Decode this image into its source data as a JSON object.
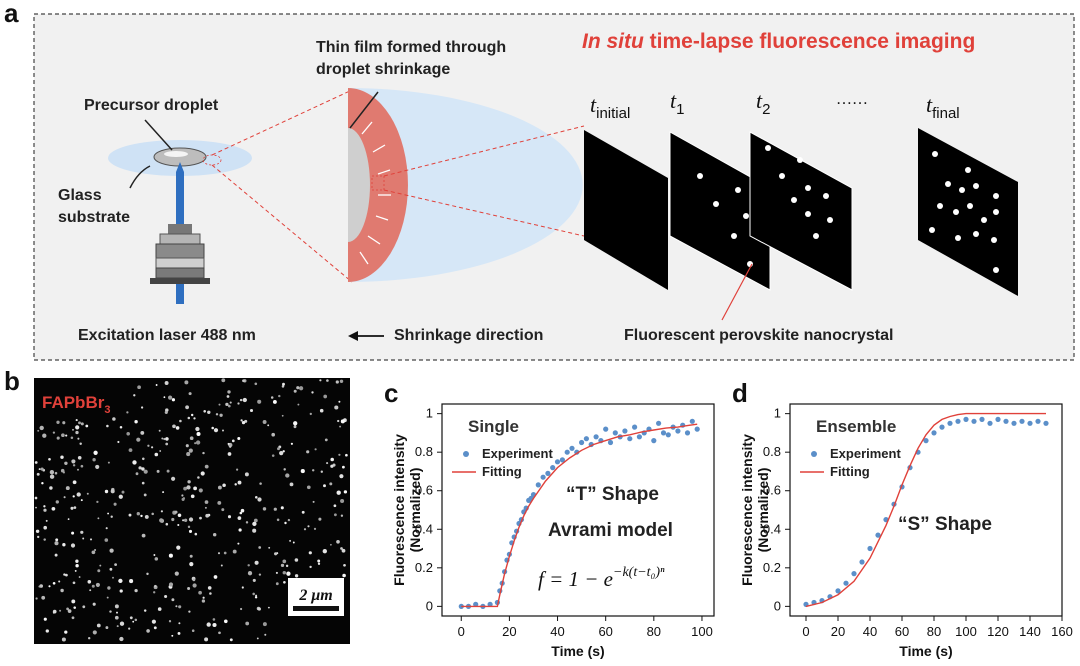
{
  "panel_a": {
    "letter": "a",
    "title_italic": "In situ",
    "title_rest": " time-lapse fluorescence imaging",
    "precursor_label": "Precursor droplet",
    "substrate_line1": "Glass",
    "substrate_line2": "substrate",
    "film_line1": "Thin film formed through",
    "film_line2": "droplet shrinkage",
    "laser_label": "Excitation laser 488 nm",
    "shrink_label": "Shrinkage direction",
    "nanocrystal_label": "Fluorescent perovskite nanocrystal",
    "frames": [
      {
        "base": "t",
        "sub": "initial"
      },
      {
        "base": "t",
        "sub": "1"
      },
      {
        "base": "t",
        "sub": "2"
      },
      {
        "base": "……",
        "sub": ""
      },
      {
        "base": "t",
        "sub": "final"
      }
    ],
    "colors": {
      "accent": "#e0413a",
      "film": "#e07a70",
      "halo": "#d6e7f7",
      "laser": "#2f6fc0"
    }
  },
  "panel_b": {
    "letter": "b",
    "material_base": "FAPbBr",
    "material_sub": "3",
    "scalebar": "2 μm"
  },
  "chart_data": [
    {
      "panel": "c",
      "type": "scatter",
      "title": "Single",
      "xlabel": "Time (s)",
      "ylabel_line1": "Fluorescence intensity",
      "ylabel_line2": "(Normalized)",
      "xlim": [
        -8,
        105
      ],
      "ylim": [
        -0.05,
        1.05
      ],
      "xticks": [
        0,
        20,
        40,
        60,
        80,
        100
      ],
      "yticks": [
        0,
        0.2,
        0.4,
        0.6,
        0.8,
        1
      ],
      "legend": [
        "Experiment",
        "Fitting"
      ],
      "annotation_shape": "“T” Shape",
      "annotation_model": "Avrami model",
      "equation": "f = 1 − e",
      "equation_exp": "−k(t−t₀)ⁿ",
      "series": [
        {
          "name": "Experiment",
          "color": "#5b8fc9",
          "x": [
            0,
            3,
            6,
            9,
            12,
            15,
            16,
            17,
            18,
            19,
            20,
            21,
            22,
            23,
            24,
            25,
            26,
            27,
            28,
            29,
            30,
            32,
            34,
            36,
            38,
            40,
            42,
            44,
            46,
            48,
            50,
            52,
            54,
            56,
            58,
            60,
            62,
            64,
            66,
            68,
            70,
            72,
            74,
            76,
            78,
            80,
            82,
            84,
            86,
            88,
            90,
            92,
            94,
            96,
            98
          ],
          "y": [
            0.0,
            0.0,
            0.01,
            0.0,
            0.01,
            0.02,
            0.08,
            0.12,
            0.18,
            0.24,
            0.27,
            0.33,
            0.36,
            0.39,
            0.43,
            0.45,
            0.49,
            0.51,
            0.55,
            0.56,
            0.58,
            0.63,
            0.67,
            0.69,
            0.72,
            0.75,
            0.76,
            0.8,
            0.82,
            0.8,
            0.85,
            0.87,
            0.84,
            0.88,
            0.86,
            0.92,
            0.85,
            0.9,
            0.88,
            0.91,
            0.87,
            0.93,
            0.88,
            0.9,
            0.92,
            0.86,
            0.95,
            0.9,
            0.89,
            0.93,
            0.91,
            0.94,
            0.9,
            0.96,
            0.92
          ]
        },
        {
          "name": "Fitting",
          "color": "#e0413a",
          "x": [
            0,
            15,
            16,
            18,
            20,
            22,
            24,
            26,
            28,
            30,
            35,
            40,
            45,
            50,
            55,
            60,
            65,
            70,
            75,
            80,
            85,
            90,
            95,
            98
          ],
          "y": [
            0,
            0,
            0.06,
            0.17,
            0.26,
            0.34,
            0.41,
            0.47,
            0.52,
            0.56,
            0.65,
            0.72,
            0.77,
            0.81,
            0.84,
            0.86,
            0.88,
            0.89,
            0.905,
            0.915,
            0.925,
            0.93,
            0.94,
            0.945
          ]
        }
      ]
    },
    {
      "panel": "d",
      "type": "scatter",
      "title": "Ensemble",
      "xlabel": "Time (s)",
      "ylabel_line1": "Fluorescence intensity",
      "ylabel_line2": "(Normalized)",
      "xlim": [
        -10,
        160
      ],
      "ylim": [
        -0.05,
        1.05
      ],
      "xticks": [
        0,
        20,
        40,
        60,
        80,
        100,
        120,
        140,
        160
      ],
      "yticks": [
        0,
        0.2,
        0.4,
        0.6,
        0.8,
        1
      ],
      "legend": [
        "Experiment",
        "Fitting"
      ],
      "annotation_shape": "“S” Shape",
      "series": [
        {
          "name": "Experiment",
          "color": "#5b8fc9",
          "x": [
            0,
            5,
            10,
            15,
            20,
            25,
            30,
            35,
            40,
            45,
            50,
            55,
            60,
            65,
            70,
            75,
            80,
            85,
            90,
            95,
            100,
            105,
            110,
            115,
            120,
            125,
            130,
            135,
            140,
            145,
            150
          ],
          "y": [
            0.01,
            0.02,
            0.03,
            0.05,
            0.08,
            0.12,
            0.17,
            0.23,
            0.3,
            0.37,
            0.45,
            0.53,
            0.62,
            0.72,
            0.8,
            0.86,
            0.9,
            0.93,
            0.95,
            0.96,
            0.97,
            0.96,
            0.97,
            0.95,
            0.97,
            0.96,
            0.95,
            0.96,
            0.95,
            0.96,
            0.95
          ]
        },
        {
          "name": "Fitting",
          "color": "#e0413a",
          "x": [
            0,
            10,
            20,
            30,
            40,
            50,
            55,
            60,
            65,
            70,
            75,
            80,
            85,
            90,
            95,
            100,
            110,
            120,
            130,
            140,
            150
          ],
          "y": [
            0.0,
            0.02,
            0.06,
            0.13,
            0.25,
            0.42,
            0.52,
            0.63,
            0.73,
            0.82,
            0.89,
            0.94,
            0.97,
            0.985,
            0.995,
            1.0,
            1.0,
            1.0,
            1.0,
            1.0,
            1.0
          ]
        }
      ]
    }
  ]
}
